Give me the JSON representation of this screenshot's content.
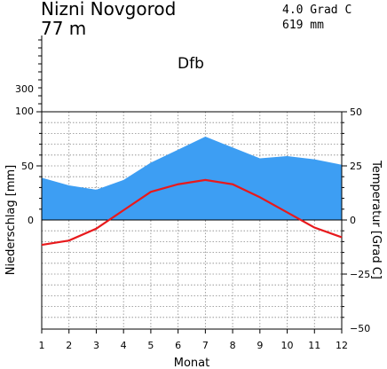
{
  "header": {
    "station": "Nizni Novgorod",
    "elevation": "77 m",
    "mean_temperature": "4.0 Grad C",
    "annual_precipitation": "619 mm",
    "climate_class": "Dfb"
  },
  "chart_data": {
    "type": "area",
    "xlabel": "Monat",
    "ylabel_left": "Niederschlag [mm]",
    "ylabel_right": "Temperatur [Grad C]",
    "x": [
      1,
      2,
      3,
      4,
      5,
      6,
      7,
      8,
      9,
      10,
      11,
      12
    ],
    "x_tick_labels": [
      "1",
      "2",
      "3",
      "4",
      "5",
      "6",
      "7",
      "8",
      "9",
      "10",
      "11",
      "12"
    ],
    "precip_ticks": [
      {
        "value": 0,
        "label": "0"
      },
      {
        "value": 50,
        "label": "50"
      },
      {
        "value": 100,
        "label": "100"
      },
      {
        "value": 300,
        "label": "300"
      }
    ],
    "temp_ticks": [
      {
        "value": -50,
        "label": "−50"
      },
      {
        "value": -25,
        "label": "−25"
      },
      {
        "value": 0,
        "label": "0"
      },
      {
        "value": 25,
        "label": "25"
      },
      {
        "value": 50,
        "label": "50"
      }
    ],
    "precip_lim": [
      0,
      100
    ],
    "temp_lim": [
      -50,
      50
    ],
    "grid": true,
    "series": [
      {
        "kind": "precipitation",
        "color": "#3d9ef3",
        "values": [
          39,
          32,
          28,
          37,
          53,
          65,
          77,
          67,
          57,
          59,
          56,
          51
        ]
      },
      {
        "kind": "temperature",
        "color": "#e8191c",
        "values": [
          -11.5,
          -9.5,
          -4,
          4.5,
          13,
          16.5,
          18.5,
          16.5,
          10.5,
          3.5,
          -3.5,
          -8
        ]
      }
    ]
  }
}
